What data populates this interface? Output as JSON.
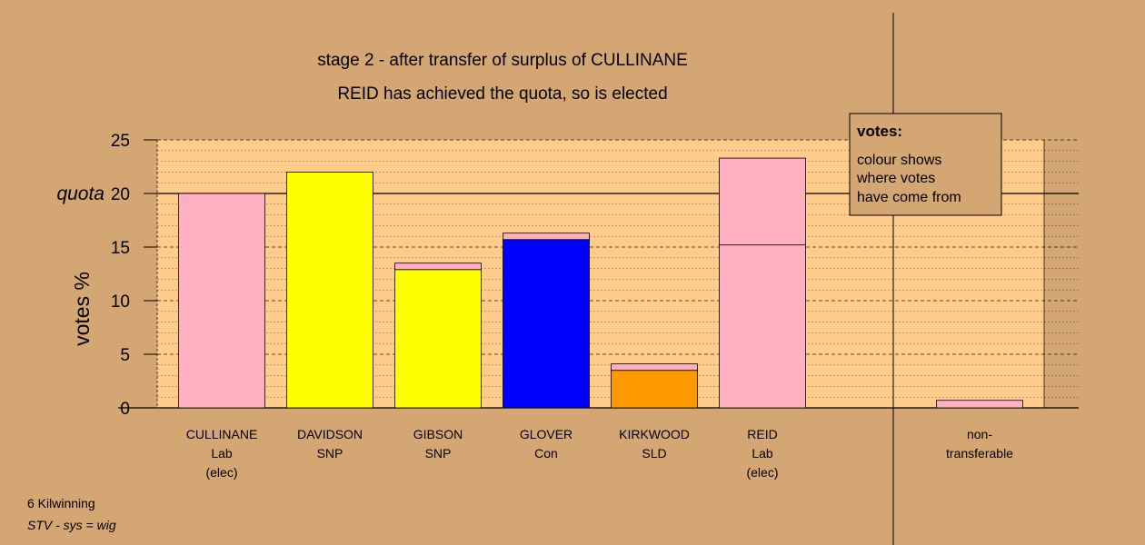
{
  "chart_data": {
    "type": "bar",
    "title": "stage 2 - after transfer of surplus of CULLINANE",
    "subtitle": "REID has achieved the quota, so is elected",
    "ylabel": "votes %",
    "ylim": [
      0,
      25
    ],
    "yticks": [
      0,
      5,
      10,
      15,
      20,
      25
    ],
    "quota": 20,
    "quota_label": "quota",
    "grid": "dashed",
    "categories": [
      {
        "lines": [
          "CULLINANE",
          "Lab",
          "(elec)"
        ],
        "segments": [
          {
            "value": 20.0,
            "color": "#ffb0c0"
          }
        ]
      },
      {
        "lines": [
          "DAVIDSON",
          "SNP"
        ],
        "segments": [
          {
            "value": 22.0,
            "color": "#ffff00"
          }
        ]
      },
      {
        "lines": [
          "GIBSON",
          "SNP"
        ],
        "segments": [
          {
            "value": 12.9,
            "color": "#ffff00"
          },
          {
            "value": 0.6,
            "color": "#ffb0c0"
          }
        ]
      },
      {
        "lines": [
          "GLOVER",
          "Con"
        ],
        "segments": [
          {
            "value": 15.7,
            "color": "#0000ff"
          },
          {
            "value": 0.6,
            "color": "#ffb0c0"
          }
        ]
      },
      {
        "lines": [
          "KIRKWOOD",
          "SLD"
        ],
        "segments": [
          {
            "value": 3.5,
            "color": "#ff9900"
          },
          {
            "value": 0.6,
            "color": "#ffb0c0"
          }
        ]
      },
      {
        "lines": [
          "REID",
          "Lab",
          "(elec)"
        ],
        "segments": [
          {
            "value": 15.2,
            "color": "#ffb0c0"
          },
          {
            "value": 8.1,
            "color": "#ffb0c0"
          }
        ]
      },
      {
        "lines": [
          "non-",
          "transferable"
        ],
        "segments": [
          {
            "value": 0.7,
            "color": "#ffb0c0"
          }
        ]
      }
    ],
    "legend": {
      "title": "votes:",
      "lines": [
        "colour shows",
        "where votes",
        "have come from"
      ],
      "placement": "top-right"
    }
  },
  "footer": {
    "line1": "6 Kilwinning",
    "line2": "STV - sys = wig"
  },
  "colors": {
    "background": "#d4a673",
    "plot_background": "#ffcc8c"
  }
}
